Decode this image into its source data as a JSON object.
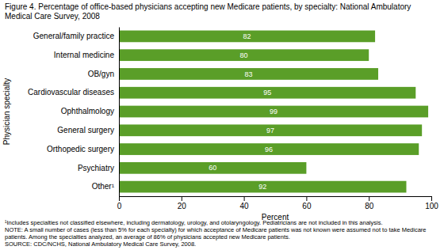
{
  "chart_data": {
    "type": "bar",
    "orientation": "horizontal",
    "title": [
      "Figure 4. Percentage of office-based physicians accepting new Medicare patients, by specialty: National Ambulatory",
      "Medical Care Survey, 2008"
    ],
    "categories": [
      "General/family practice",
      "Internal medicine",
      "OB/gyn",
      "Cardiovascular diseases",
      "Ophthalmology",
      "General surgery",
      "Orthopedic surgery",
      "Psychiatry",
      "Other¹"
    ],
    "values": [
      82,
      80,
      83,
      95,
      99,
      97,
      96,
      60,
      92
    ],
    "color": "#5a9e28",
    "data_labels": true,
    "grid": false,
    "xlabel": "Percent",
    "ylabel": "Physician specialty",
    "xlim": [
      0,
      100
    ],
    "xticks": [
      0,
      20,
      40,
      60,
      80,
      100
    ],
    "notes": [
      "¹Includes specialties not classified elsewhere, including dermatology, urology, and otolaryngology. Pediatricians are not included in this analysis.",
      "NOTE: A small number of cases (less than 5% for each specialty) for which acceptance of Medicare patients was not known were assumed not to take Medicare",
      "patients. Among the specialties analyzed, an average of 86% of physicians accepted new Medicare patients.",
      "SOURCE: CDC/NCHS, National Ambulatory Medical Care Survey, 2008."
    ]
  }
}
